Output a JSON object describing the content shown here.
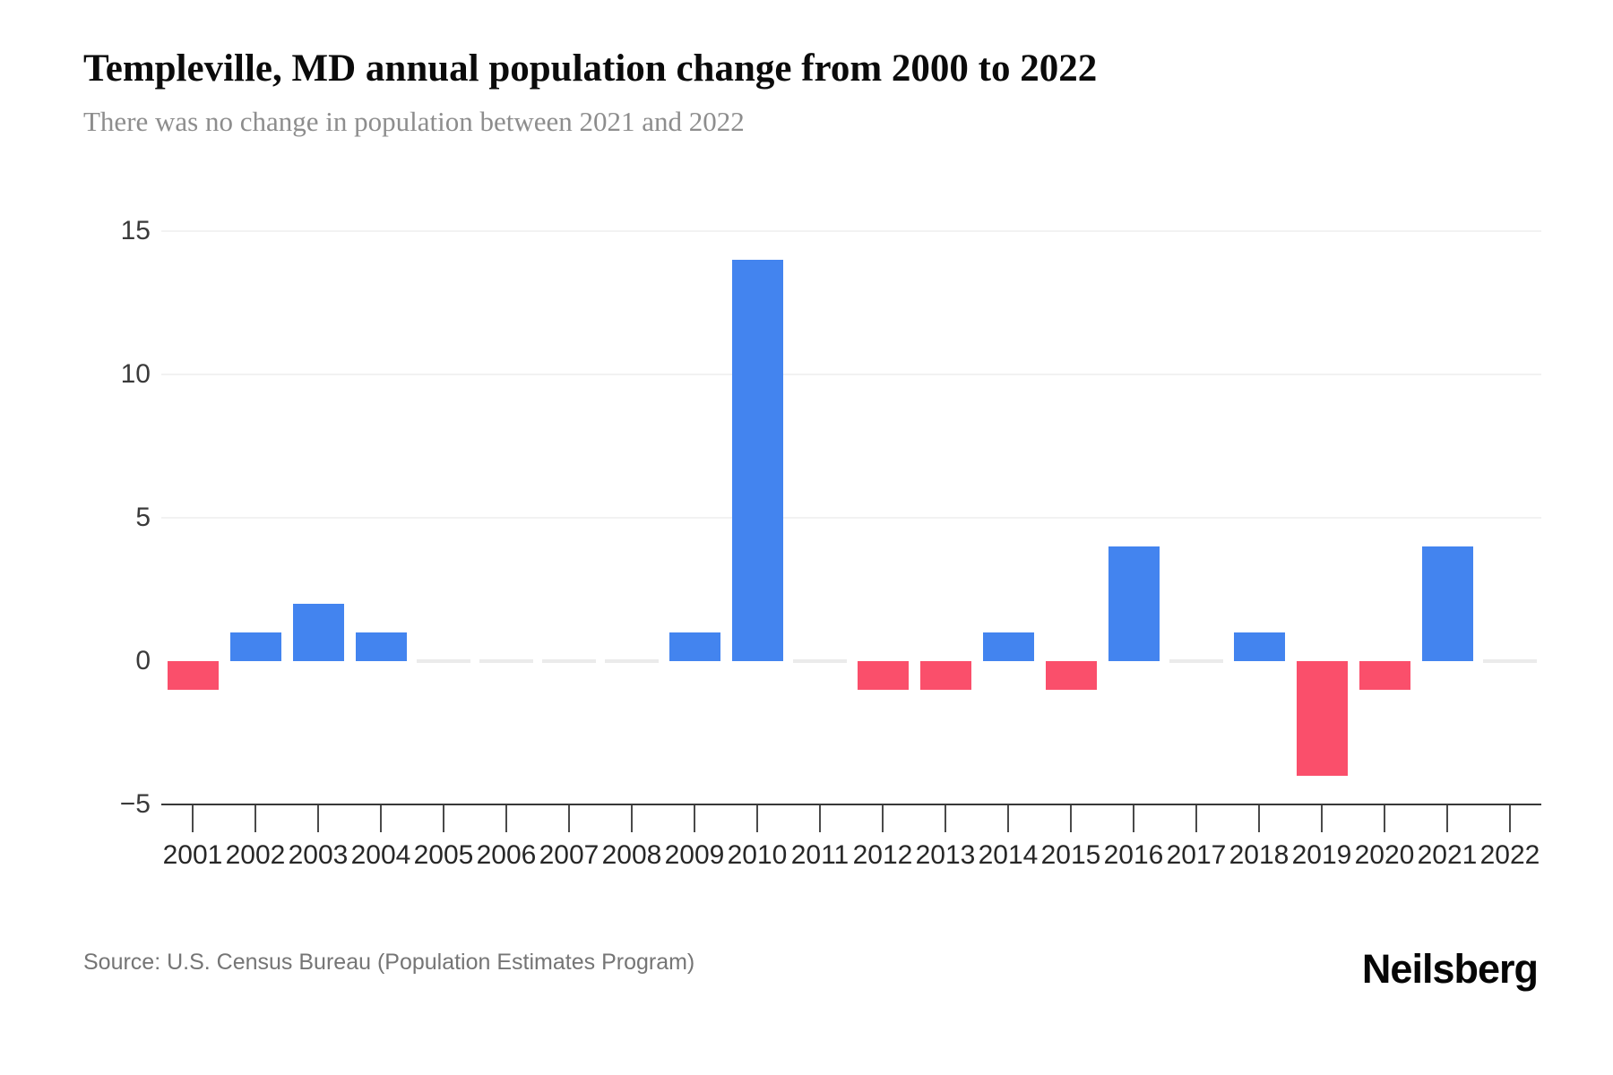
{
  "header": {
    "title": "Templeville, MD annual population change from 2000 to 2022",
    "subtitle": "There was no change in population between 2021 and 2022"
  },
  "footer": {
    "source": "Source: U.S. Census Bureau (Population Estimates Program)",
    "brand": "Neilsberg"
  },
  "chart_data": {
    "type": "bar",
    "title": "Templeville, MD annual population change from 2000 to 2022",
    "subtitle": "There was no change in population between 2021 and 2022",
    "xlabel": "",
    "ylabel": "",
    "categories": [
      "2001",
      "2002",
      "2003",
      "2004",
      "2005",
      "2006",
      "2007",
      "2008",
      "2009",
      "2010",
      "2011",
      "2012",
      "2013",
      "2014",
      "2015",
      "2016",
      "2017",
      "2018",
      "2019",
      "2020",
      "2021",
      "2022"
    ],
    "values": [
      -1,
      1,
      2,
      1,
      0,
      0,
      0,
      0,
      1,
      14,
      0,
      -1,
      -1,
      1,
      -1,
      4,
      0,
      1,
      -4,
      -1,
      4,
      0
    ],
    "ylim": [
      -5,
      15
    ],
    "yticks": [
      15,
      10,
      5,
      0,
      -5
    ],
    "gridlines_at": [
      15,
      10,
      5
    ],
    "legend": "none",
    "colors": {
      "positive": "#4384ef",
      "negative": "#fa4f6b",
      "zero": "#ebebeb",
      "axis": "#383838",
      "grid": "#f2f2f2"
    }
  }
}
